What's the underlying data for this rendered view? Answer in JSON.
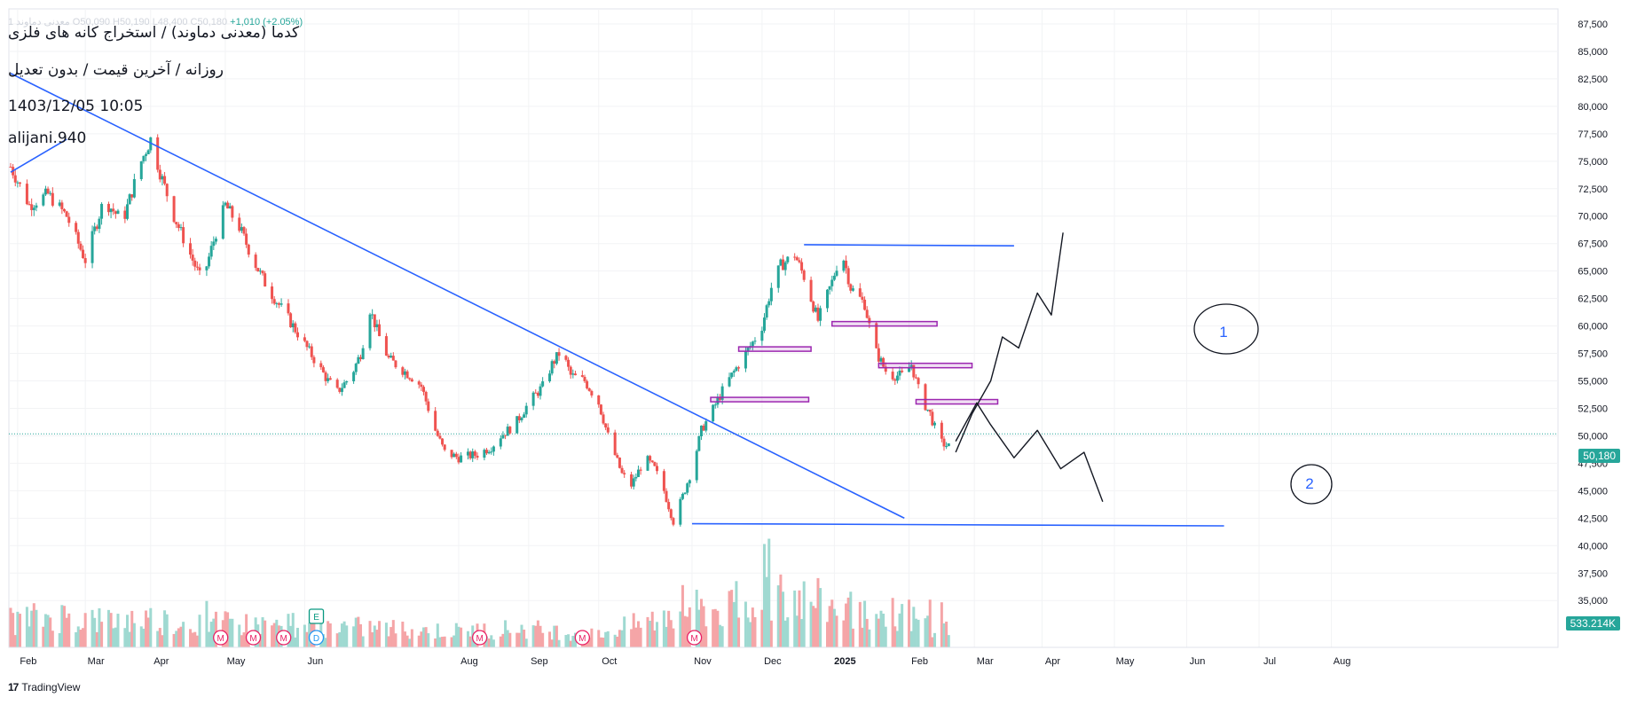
{
  "header": {
    "ohlc_text": "معدنی دماوند 1 O50,090 H50,190 L48,400 C50,180",
    "change_text": "+1,010 (+2.05%)",
    "title": "کدما (معدنی دماوند) / استخراج کانه های فلزی",
    "subtitle": "روزانه / آخرین قیمت / بدون تعدیل",
    "datetime": "1403/12/05 10:05",
    "author": "alijani.940"
  },
  "badges": {
    "last_price": "50,180",
    "last_price_color": "#26a69a",
    "volume": "533.214K",
    "volume_color": "#26a69a"
  },
  "brand": {
    "name": "TradingView"
  },
  "colors": {
    "up": "#26a69a",
    "down": "#ef5350",
    "trend": "#2962ff",
    "zone": "#9c27b0",
    "marker": "#e91e63",
    "earnings": "#089981",
    "dividend": "#2196f3"
  },
  "chart_data": {
    "type": "candlestick",
    "title": "کدما (معدنی دماوند) / استخراج کانه های فلزی",
    "ylim": [
      32500,
      87500
    ],
    "y_ticks": [
      "35,000",
      "37,500",
      "40,000",
      "42,500",
      "45,000",
      "47,500",
      "50,000",
      "52,500",
      "55,000",
      "57,500",
      "60,000",
      "62,500",
      "65,000",
      "67,500",
      "70,000",
      "72,500",
      "75,000",
      "77,500",
      "80,000",
      "82,500",
      "85,000",
      "87,500"
    ],
    "x_ticks": [
      "Feb",
      "Mar",
      "Apr",
      "May",
      "Jun",
      "Aug",
      "Sep",
      "Oct",
      "Nov",
      "Dec",
      "2025",
      "Feb",
      "Mar",
      "Apr",
      "May",
      "Jun",
      "Jul",
      "Aug"
    ],
    "x_tick_days": [
      3,
      32,
      60,
      92,
      126,
      192,
      222,
      252,
      292,
      322,
      353,
      385,
      413,
      442,
      473,
      504,
      535,
      566
    ],
    "last_close": 50180,
    "price_anchors": [
      [
        0,
        74500
      ],
      [
        8,
        71000
      ],
      [
        16,
        72000
      ],
      [
        24,
        70000
      ],
      [
        32,
        66000
      ],
      [
        40,
        71500
      ],
      [
        48,
        69500
      ],
      [
        56,
        75000
      ],
      [
        60,
        77000
      ],
      [
        64,
        74000
      ],
      [
        70,
        70000
      ],
      [
        76,
        67000
      ],
      [
        82,
        64000
      ],
      [
        88,
        68500
      ],
      [
        92,
        71000
      ],
      [
        98,
        69000
      ],
      [
        104,
        66000
      ],
      [
        110,
        63500
      ],
      [
        118,
        61000
      ],
      [
        124,
        59000
      ],
      [
        130,
        57000
      ],
      [
        136,
        55000
      ],
      [
        140,
        54000
      ],
      [
        146,
        55500
      ],
      [
        150,
        57500
      ],
      [
        154,
        61500
      ],
      [
        158,
        59000
      ],
      [
        162,
        57000
      ],
      [
        168,
        56000
      ],
      [
        174,
        55000
      ],
      [
        176,
        54500
      ],
      [
        182,
        50500
      ],
      [
        186,
        48500
      ],
      [
        192,
        48000
      ],
      [
        200,
        48300
      ],
      [
        206,
        49000
      ],
      [
        210,
        50000
      ],
      [
        216,
        51000
      ],
      [
        222,
        53000
      ],
      [
        228,
        54500
      ],
      [
        232,
        56500
      ],
      [
        236,
        57800
      ],
      [
        240,
        55500
      ],
      [
        246,
        55000
      ],
      [
        252,
        53000
      ],
      [
        256,
        50000
      ],
      [
        262,
        46500
      ],
      [
        266,
        45500
      ],
      [
        272,
        48000
      ],
      [
        276,
        47000
      ],
      [
        280,
        45000
      ],
      [
        284,
        42200
      ],
      [
        288,
        44500
      ],
      [
        292,
        47000
      ],
      [
        296,
        50500
      ],
      [
        300,
        52000
      ],
      [
        306,
        54500
      ],
      [
        312,
        56500
      ],
      [
        318,
        58500
      ],
      [
        322,
        60000
      ],
      [
        326,
        63500
      ],
      [
        330,
        65500
      ],
      [
        336,
        66500
      ],
      [
        340,
        64500
      ],
      [
        346,
        60500
      ],
      [
        352,
        64000
      ],
      [
        356,
        67000
      ],
      [
        360,
        63500
      ],
      [
        366,
        62000
      ],
      [
        370,
        58000
      ],
      [
        376,
        55500
      ],
      [
        382,
        55500
      ],
      [
        386,
        56500
      ],
      [
        390,
        53500
      ],
      [
        394,
        52000
      ],
      [
        398,
        49500
      ],
      [
        402,
        49000
      ]
    ],
    "volume_ylim": [
      0,
      8.5
    ],
    "volume_anchors": [
      [
        0,
        2.5
      ],
      [
        20,
        3.0
      ],
      [
        40,
        2.5
      ],
      [
        60,
        2.7
      ],
      [
        80,
        2.2
      ],
      [
        100,
        2.2
      ],
      [
        130,
        2.0
      ],
      [
        160,
        1.8
      ],
      [
        190,
        1.5
      ],
      [
        220,
        1.8
      ],
      [
        250,
        1.2
      ],
      [
        275,
        2.5
      ],
      [
        290,
        3.5
      ],
      [
        310,
        3.5
      ],
      [
        325,
        5.5
      ],
      [
        340,
        4.5
      ],
      [
        360,
        3.5
      ],
      [
        380,
        3.0
      ],
      [
        402,
        1.8
      ]
    ],
    "volume_spikes": [
      [
        26,
        3.0
      ],
      [
        84,
        3.5
      ],
      [
        121,
        2.6
      ],
      [
        288,
        4.7
      ],
      [
        311,
        5.0
      ],
      [
        323,
        7.8
      ],
      [
        325,
        8.2
      ],
      [
        330,
        5.5
      ],
      [
        341,
        4.3
      ],
      [
        360,
        4.2
      ],
      [
        377,
        3.9
      ],
      [
        385,
        3.6
      ],
      [
        394,
        3.6
      ],
      [
        399,
        3.4
      ]
    ],
    "drawings": {
      "trend_lines": [
        [
          [
            0,
            74000
          ],
          [
            24,
            77000
          ]
        ],
        [
          [
            0,
            83000
          ],
          [
            383,
            42500
          ]
        ],
        [
          [
            292,
            42000
          ],
          [
            520,
            41800
          ]
        ],
        [
          [
            340,
            67400
          ],
          [
            430,
            67300
          ]
        ]
      ],
      "horizontal_zones": [
        [
          300,
          53300,
          342,
          53300
        ],
        [
          312,
          57900,
          343,
          57900
        ],
        [
          352,
          60200,
          397,
          60200
        ],
        [
          372,
          56400,
          412,
          56400
        ],
        [
          388,
          53100,
          423,
          53100
        ]
      ],
      "scenario_labels": [
        "1",
        "2"
      ],
      "scenario_1_path": [
        [
          405,
          48500
        ],
        [
          412,
          52000
        ],
        [
          420,
          55000
        ],
        [
          425,
          59000
        ],
        [
          432,
          58000
        ],
        [
          440,
          63000
        ],
        [
          446,
          61000
        ],
        [
          451,
          68500
        ]
      ],
      "scenario_2_path": [
        [
          405,
          49500
        ],
        [
          414,
          53000
        ],
        [
          420,
          51000
        ],
        [
          430,
          48000
        ],
        [
          440,
          50500
        ],
        [
          450,
          47000
        ],
        [
          460,
          48500
        ],
        [
          468,
          44000
        ]
      ]
    },
    "event_markers": [
      {
        "day": 90,
        "type": "M"
      },
      {
        "day": 104,
        "type": "M"
      },
      {
        "day": 117,
        "type": "M"
      },
      {
        "day": 131,
        "type": "E"
      },
      {
        "day": 131,
        "type": "D"
      },
      {
        "day": 201,
        "type": "M"
      },
      {
        "day": 245,
        "type": "M"
      },
      {
        "day": 293,
        "type": "M"
      }
    ]
  }
}
